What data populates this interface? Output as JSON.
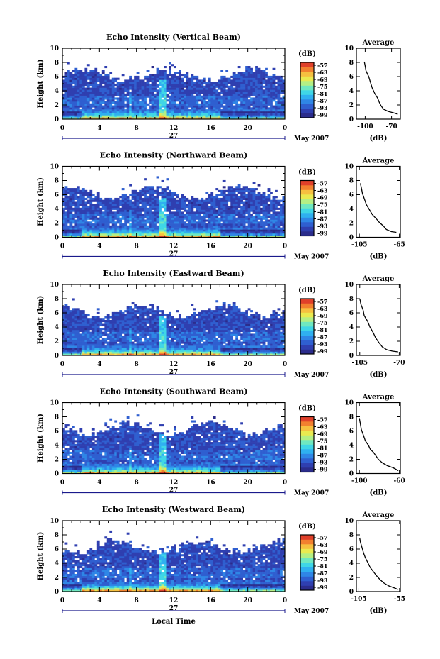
{
  "colors": {
    "colormap": [
      "#2b2c8c",
      "#2f3fb0",
      "#2f5fd0",
      "#2f86e6",
      "#2fb0f0",
      "#3fd6e6",
      "#6fe8c0",
      "#b4ef84",
      "#eaea50",
      "#f6c040",
      "#f2802f",
      "#e0402a"
    ],
    "profile_line": "#000000"
  },
  "common": {
    "height_ylabel": "Height (km)",
    "yticks": [
      "0",
      "2",
      "4",
      "6",
      "8",
      "10"
    ],
    "xticks": [
      "0",
      "4",
      "8",
      "12",
      "16",
      "20",
      "0"
    ],
    "day_label": "27",
    "month_label": "May 2007",
    "cbar_label": "(dB)",
    "cbar_ticks": [
      "-57",
      "-63",
      "-69",
      "-75",
      "-81",
      "-87",
      "-93",
      "-99"
    ],
    "avg_title": "Average",
    "avg_xlabel": "(dB)",
    "avg_yticks": [
      "0",
      "2",
      "4",
      "6",
      "8",
      "10"
    ],
    "xlabel": "Local Time"
  },
  "chart_data": [
    {
      "type": "heatmap",
      "title": "Echo Intensity (Vertical Beam)",
      "x_hours": [
        0,
        24
      ],
      "ylim": [
        0,
        10
      ],
      "profile": {
        "xlabel": "(dB)",
        "xtick_labels": [
          "-100",
          "-70"
        ],
        "xlim": [
          -110,
          -60
        ],
        "points": [
          [
            -101,
            8.1
          ],
          [
            -100,
            7.5
          ],
          [
            -99,
            6.8
          ],
          [
            -96,
            6.0
          ],
          [
            -94,
            5.2
          ],
          [
            -92,
            4.4
          ],
          [
            -89,
            3.6
          ],
          [
            -86,
            3.0
          ],
          [
            -84,
            2.4
          ],
          [
            -82,
            1.9
          ],
          [
            -79,
            1.4
          ],
          [
            -74,
            1.1
          ],
          [
            -68,
            0.9
          ],
          [
            -63,
            0.7
          ]
        ]
      }
    },
    {
      "type": "heatmap",
      "title": "Echo Intensity (Northward Beam)",
      "x_hours": [
        0,
        24
      ],
      "ylim": [
        0,
        10
      ],
      "profile": {
        "xlabel": "(dB)",
        "xtick_labels": [
          "-105",
          "-65"
        ],
        "xlim": [
          -108,
          -64
        ],
        "points": [
          [
            -104,
            7.6
          ],
          [
            -103,
            7.0
          ],
          [
            -102,
            6.2
          ],
          [
            -100,
            5.4
          ],
          [
            -98,
            4.6
          ],
          [
            -95,
            3.9
          ],
          [
            -92,
            3.2
          ],
          [
            -88,
            2.6
          ],
          [
            -85,
            2.1
          ],
          [
            -81,
            1.6
          ],
          [
            -78,
            1.1
          ],
          [
            -73,
            0.8
          ],
          [
            -68,
            0.7
          ]
        ]
      }
    },
    {
      "type": "heatmap",
      "title": "Echo Intensity (Eastward Beam)",
      "x_hours": [
        0,
        24
      ],
      "ylim": [
        0,
        10
      ],
      "profile": {
        "xlabel": "(dB)",
        "xtick_labels": [
          "-105",
          "-70"
        ],
        "xlim": [
          -108,
          -69
        ],
        "points": [
          [
            -105,
            8.0
          ],
          [
            -104,
            7.2
          ],
          [
            -102,
            6.4
          ],
          [
            -101,
            5.6
          ],
          [
            -98,
            4.8
          ],
          [
            -96,
            4.0
          ],
          [
            -93,
            3.2
          ],
          [
            -91,
            2.5
          ],
          [
            -88,
            1.8
          ],
          [
            -85,
            1.2
          ],
          [
            -81,
            0.8
          ],
          [
            -76,
            0.6
          ],
          [
            -71,
            0.5
          ]
        ]
      }
    },
    {
      "type": "heatmap",
      "title": "Echo Intensity (Southward Beam)",
      "x_hours": [
        0,
        24
      ],
      "ylim": [
        0,
        10
      ],
      "profile": {
        "xlabel": "(dB)",
        "xtick_labels": [
          "-100",
          "-60"
        ],
        "xlim": [
          -103,
          -59
        ],
        "points": [
          [
            -100,
            7.8
          ],
          [
            -99,
            7.0
          ],
          [
            -98,
            6.2
          ],
          [
            -96,
            5.4
          ],
          [
            -94,
            4.6
          ],
          [
            -91,
            4.0
          ],
          [
            -89,
            3.4
          ],
          [
            -86,
            3.0
          ],
          [
            -84,
            2.6
          ],
          [
            -81,
            2.0
          ],
          [
            -77,
            1.5
          ],
          [
            -72,
            1.1
          ],
          [
            -66,
            0.8
          ],
          [
            -61,
            0.4
          ]
        ]
      }
    },
    {
      "type": "heatmap",
      "title": "Echo Intensity (Westward Beam)",
      "x_hours": [
        0,
        24
      ],
      "ylim": [
        0,
        10
      ],
      "profile": {
        "xlabel": "(dB)",
        "xtick_labels": [
          "-105",
          "-55"
        ],
        "xlim": [
          -108,
          -54
        ],
        "points": [
          [
            -104,
            7.6
          ],
          [
            -103,
            7.0
          ],
          [
            -101,
            6.2
          ],
          [
            -99,
            5.4
          ],
          [
            -97,
            4.8
          ],
          [
            -94,
            4.1
          ],
          [
            -91,
            3.4
          ],
          [
            -87,
            2.8
          ],
          [
            -83,
            2.2
          ],
          [
            -79,
            1.7
          ],
          [
            -74,
            1.2
          ],
          [
            -68,
            0.8
          ],
          [
            -61,
            0.5
          ],
          [
            -57,
            0.3
          ]
        ]
      }
    }
  ]
}
